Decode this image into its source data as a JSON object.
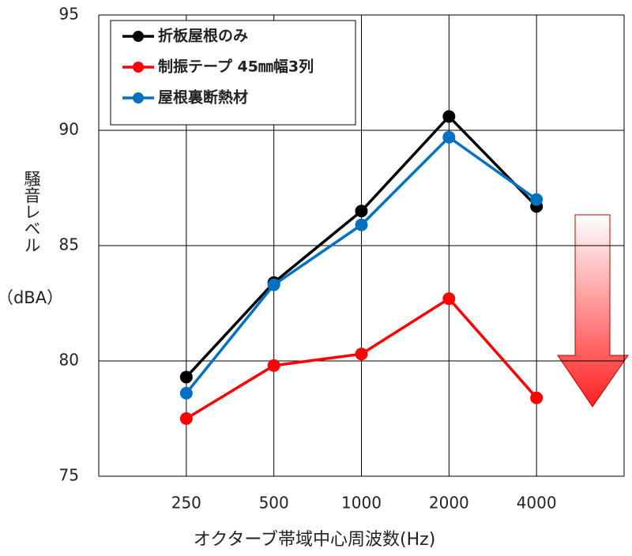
{
  "chart_data": {
    "type": "line",
    "x_label": "オクターブ帯域中心周波数(Hz)",
    "y_label": "騒音レベル",
    "y_label_unit": "（dBA）",
    "categories": [
      "250",
      "500",
      "1000",
      "2000",
      "4000"
    ],
    "series": [
      {
        "name": "折板屋根のみ",
        "color": "#000000",
        "values": [
          79.3,
          83.4,
          86.5,
          90.6,
          86.7
        ]
      },
      {
        "name": "制振テープ 45㎜幅3列",
        "color": "#ff0000",
        "values": [
          77.5,
          79.8,
          80.3,
          82.7,
          78.4
        ]
      },
      {
        "name": "屋根裏断熱材",
        "color": "#0070c0",
        "values": [
          78.6,
          83.3,
          85.9,
          89.7,
          87.0
        ]
      }
    ],
    "ylim": [
      75,
      95
    ],
    "yticks": [
      75,
      80,
      85,
      90,
      95
    ],
    "grid": true,
    "legend": "upper left"
  }
}
